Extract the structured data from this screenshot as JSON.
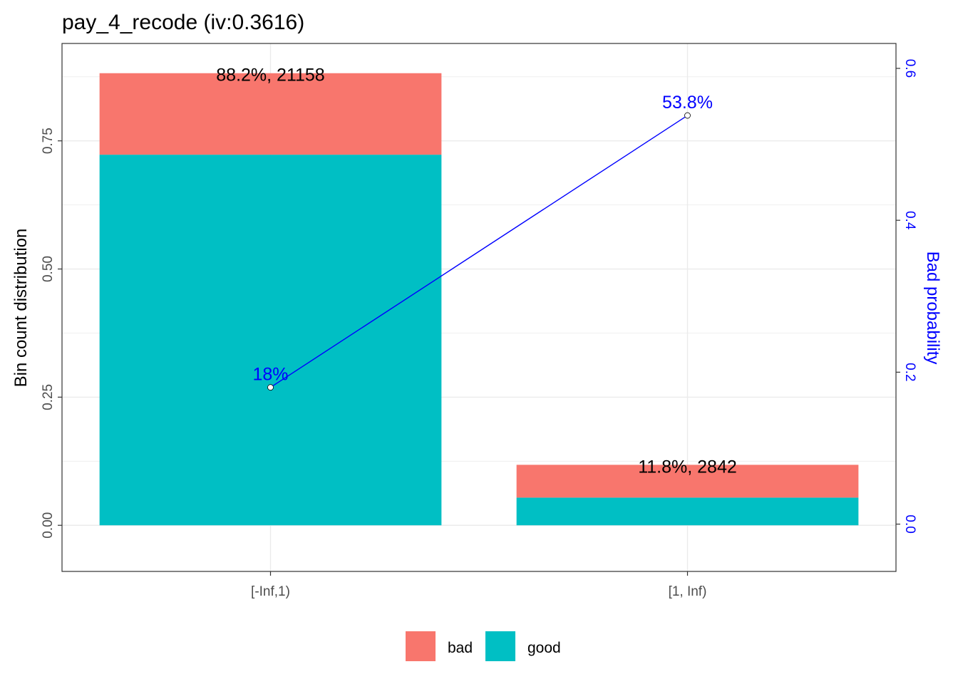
{
  "chart_data": {
    "type": "bar",
    "title": "pay_4_recode  (iv:0.3616)",
    "categories": [
      "[-Inf,1)",
      "[1, Inf)"
    ],
    "stacked": true,
    "series": [
      {
        "name": "good",
        "values": [
          0.723,
          0.054
        ]
      },
      {
        "name": "bad",
        "values": [
          0.159,
          0.064
        ]
      }
    ],
    "bar_labels": [
      "88.2%, 21158",
      "11.8%, 2842"
    ],
    "ylabel": "Bin count distribution",
    "ylim": [
      -0.09,
      0.94
    ],
    "yticks": [
      "0.00",
      "0.25",
      "0.50",
      "0.75"
    ],
    "secondary_axis": {
      "label": "Bad probability",
      "ylim": [
        -0.0623,
        0.6328
      ],
      "ticks": [
        "0.0",
        "0.2",
        "0.4",
        "0.6"
      ],
      "line_values": [
        0.18,
        0.538
      ],
      "line_labels": [
        "18%",
        "53.8%"
      ]
    },
    "legend": {
      "position": "bottom",
      "entries": [
        "bad",
        "good"
      ]
    },
    "colors": {
      "bad": "#F8766D",
      "good": "#00BFC4",
      "line": "#0000FF",
      "grid": "#EBEBEB"
    },
    "grid": true
  }
}
